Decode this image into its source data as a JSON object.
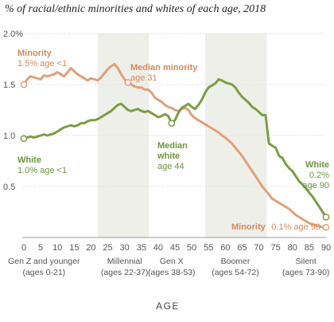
{
  "chart_data": {
    "type": "line",
    "title": "% of racial/ethnic minorities and whites of each age, 2018",
    "xlabel": "AGE",
    "xlim": [
      0,
      90
    ],
    "ylim": [
      0,
      2.0
    ],
    "x_ticks": [
      0,
      5,
      10,
      15,
      20,
      25,
      30,
      35,
      40,
      45,
      50,
      55,
      60,
      65,
      70,
      75,
      80,
      85,
      90
    ],
    "y_ticks": [
      {
        "value": 0.5,
        "label": "0.5"
      },
      {
        "value": 1.0,
        "label": "1.0"
      },
      {
        "value": 1.5,
        "label": "1.5"
      },
      {
        "value": 2.0,
        "label": "2.0%"
      }
    ],
    "generations": [
      {
        "name": "Gen Z and younger",
        "ages": "(ages 0-21)",
        "from": 0,
        "to": 21,
        "shaded": false
      },
      {
        "name": "Millennial",
        "ages": "(ages 22-37)",
        "from": 22,
        "to": 37,
        "shaded": true
      },
      {
        "name": "Gen X",
        "ages": "(ages 38-53)",
        "from": 38,
        "to": 53,
        "shaded": false
      },
      {
        "name": "Boomer",
        "ages": "(ages 54-72)",
        "from": 54,
        "to": 72,
        "shaded": true
      },
      {
        "name": "Silent",
        "ages": "(ages 73-90)",
        "from": 73,
        "to": 90,
        "shaded": false
      }
    ],
    "series": [
      {
        "name": "Minority",
        "color": "#e0a07a",
        "values": [
          [
            0,
            1.5
          ],
          [
            1,
            1.55
          ],
          [
            2,
            1.58
          ],
          [
            3,
            1.57
          ],
          [
            4,
            1.56
          ],
          [
            5,
            1.55
          ],
          [
            6,
            1.59
          ],
          [
            7,
            1.58
          ],
          [
            8,
            1.59
          ],
          [
            9,
            1.6
          ],
          [
            10,
            1.62
          ],
          [
            11,
            1.6
          ],
          [
            12,
            1.58
          ],
          [
            13,
            1.62
          ],
          [
            14,
            1.66
          ],
          [
            15,
            1.63
          ],
          [
            16,
            1.6
          ],
          [
            17,
            1.58
          ],
          [
            18,
            1.56
          ],
          [
            19,
            1.54
          ],
          [
            20,
            1.56
          ],
          [
            21,
            1.55
          ],
          [
            22,
            1.54
          ],
          [
            23,
            1.57
          ],
          [
            24,
            1.61
          ],
          [
            25,
            1.65
          ],
          [
            26,
            1.68
          ],
          [
            27,
            1.7
          ],
          [
            28,
            1.66
          ],
          [
            29,
            1.6
          ],
          [
            30,
            1.55
          ],
          [
            31,
            1.52
          ],
          [
            32,
            1.5
          ],
          [
            33,
            1.48
          ],
          [
            34,
            1.47
          ],
          [
            35,
            1.47
          ],
          [
            36,
            1.45
          ],
          [
            37,
            1.45
          ],
          [
            38,
            1.42
          ],
          [
            39,
            1.37
          ],
          [
            40,
            1.35
          ],
          [
            41,
            1.33
          ],
          [
            42,
            1.3
          ],
          [
            43,
            1.28
          ],
          [
            44,
            1.27
          ],
          [
            45,
            1.25
          ],
          [
            46,
            1.24
          ],
          [
            47,
            1.26
          ],
          [
            48,
            1.27
          ],
          [
            49,
            1.25
          ],
          [
            50,
            1.2
          ],
          [
            51,
            1.17
          ],
          [
            52,
            1.15
          ],
          [
            53,
            1.13
          ],
          [
            54,
            1.11
          ],
          [
            55,
            1.09
          ],
          [
            56,
            1.07
          ],
          [
            57,
            1.05
          ],
          [
            58,
            1.03
          ],
          [
            59,
            1.0
          ],
          [
            60,
            0.98
          ],
          [
            61,
            0.95
          ],
          [
            62,
            0.92
          ],
          [
            63,
            0.88
          ],
          [
            64,
            0.84
          ],
          [
            65,
            0.8
          ],
          [
            66,
            0.75
          ],
          [
            67,
            0.7
          ],
          [
            68,
            0.65
          ],
          [
            69,
            0.6
          ],
          [
            70,
            0.55
          ],
          [
            71,
            0.5
          ],
          [
            72,
            0.46
          ],
          [
            73,
            0.42
          ],
          [
            74,
            0.38
          ],
          [
            75,
            0.36
          ],
          [
            76,
            0.34
          ],
          [
            77,
            0.32
          ],
          [
            78,
            0.3
          ],
          [
            79,
            0.28
          ],
          [
            80,
            0.25
          ],
          [
            81,
            0.22
          ],
          [
            82,
            0.2
          ],
          [
            83,
            0.18
          ],
          [
            84,
            0.16
          ],
          [
            85,
            0.14
          ],
          [
            86,
            0.13
          ],
          [
            87,
            0.12
          ],
          [
            88,
            0.11
          ],
          [
            89,
            0.1
          ],
          [
            90,
            0.1
          ]
        ]
      },
      {
        "name": "White",
        "color": "#7c9d45",
        "values": [
          [
            0,
            0.97
          ],
          [
            1,
            0.98
          ],
          [
            2,
            0.99
          ],
          [
            3,
            0.98
          ],
          [
            4,
            0.99
          ],
          [
            5,
            1.0
          ],
          [
            6,
            1.01
          ],
          [
            7,
            1.0
          ],
          [
            8,
            1.01
          ],
          [
            9,
            1.02
          ],
          [
            10,
            1.04
          ],
          [
            11,
            1.06
          ],
          [
            12,
            1.08
          ],
          [
            13,
            1.09
          ],
          [
            14,
            1.1
          ],
          [
            15,
            1.09
          ],
          [
            16,
            1.1
          ],
          [
            17,
            1.12
          ],
          [
            18,
            1.12
          ],
          [
            19,
            1.14
          ],
          [
            20,
            1.15
          ],
          [
            21,
            1.15
          ],
          [
            22,
            1.16
          ],
          [
            23,
            1.18
          ],
          [
            24,
            1.2
          ],
          [
            25,
            1.22
          ],
          [
            26,
            1.24
          ],
          [
            27,
            1.27
          ],
          [
            28,
            1.3
          ],
          [
            29,
            1.31
          ],
          [
            30,
            1.28
          ],
          [
            31,
            1.25
          ],
          [
            32,
            1.24
          ],
          [
            33,
            1.25
          ],
          [
            34,
            1.26
          ],
          [
            35,
            1.24
          ],
          [
            36,
            1.23
          ],
          [
            37,
            1.24
          ],
          [
            38,
            1.22
          ],
          [
            39,
            1.2
          ],
          [
            40,
            1.18
          ],
          [
            41,
            1.19
          ],
          [
            42,
            1.21
          ],
          [
            43,
            1.19
          ],
          [
            44,
            1.12
          ],
          [
            45,
            1.15
          ],
          [
            46,
            1.22
          ],
          [
            47,
            1.27
          ],
          [
            48,
            1.29
          ],
          [
            49,
            1.31
          ],
          [
            50,
            1.28
          ],
          [
            51,
            1.26
          ],
          [
            52,
            1.3
          ],
          [
            53,
            1.35
          ],
          [
            54,
            1.42
          ],
          [
            55,
            1.47
          ],
          [
            56,
            1.49
          ],
          [
            57,
            1.51
          ],
          [
            58,
            1.55
          ],
          [
            59,
            1.54
          ],
          [
            60,
            1.52
          ],
          [
            61,
            1.51
          ],
          [
            62,
            1.5
          ],
          [
            63,
            1.47
          ],
          [
            64,
            1.42
          ],
          [
            65,
            1.38
          ],
          [
            66,
            1.35
          ],
          [
            67,
            1.32
          ],
          [
            68,
            1.28
          ],
          [
            69,
            1.26
          ],
          [
            70,
            1.23
          ],
          [
            71,
            1.2
          ],
          [
            72,
            1.2
          ],
          [
            73,
            0.92
          ],
          [
            74,
            0.9
          ],
          [
            75,
            0.88
          ],
          [
            76,
            0.8
          ],
          [
            77,
            0.78
          ],
          [
            78,
            0.72
          ],
          [
            79,
            0.68
          ],
          [
            80,
            0.65
          ],
          [
            81,
            0.6
          ],
          [
            82,
            0.55
          ],
          [
            83,
            0.52
          ],
          [
            84,
            0.48
          ],
          [
            85,
            0.44
          ],
          [
            86,
            0.4
          ],
          [
            87,
            0.35
          ],
          [
            88,
            0.3
          ],
          [
            89,
            0.25
          ],
          [
            90,
            0.2
          ]
        ]
      }
    ],
    "annotations": {
      "minority_start": {
        "label": "Minority",
        "detail": "1.5% age <1"
      },
      "median_minority": {
        "label": "Median minority",
        "detail": "age 31"
      },
      "white_start": {
        "label": "White",
        "detail": "1.0% age <1"
      },
      "median_white": {
        "label": "Median",
        "label2": "white",
        "detail": "age 44"
      },
      "white_end": {
        "label": "White",
        "detail": "0.2%",
        "detail2": "age 90"
      },
      "minority_end": {
        "label": "Minority",
        "detail": "0.1% age 90"
      }
    },
    "markers": [
      {
        "series": "Minority",
        "x": 0,
        "y": 1.5
      },
      {
        "series": "Minority",
        "x": 31,
        "y": 1.52
      },
      {
        "series": "Minority",
        "x": 90,
        "y": 0.1
      },
      {
        "series": "White",
        "x": 0,
        "y": 0.97
      },
      {
        "series": "White",
        "x": 44,
        "y": 1.12
      },
      {
        "series": "White",
        "x": 90,
        "y": 0.2
      }
    ]
  }
}
